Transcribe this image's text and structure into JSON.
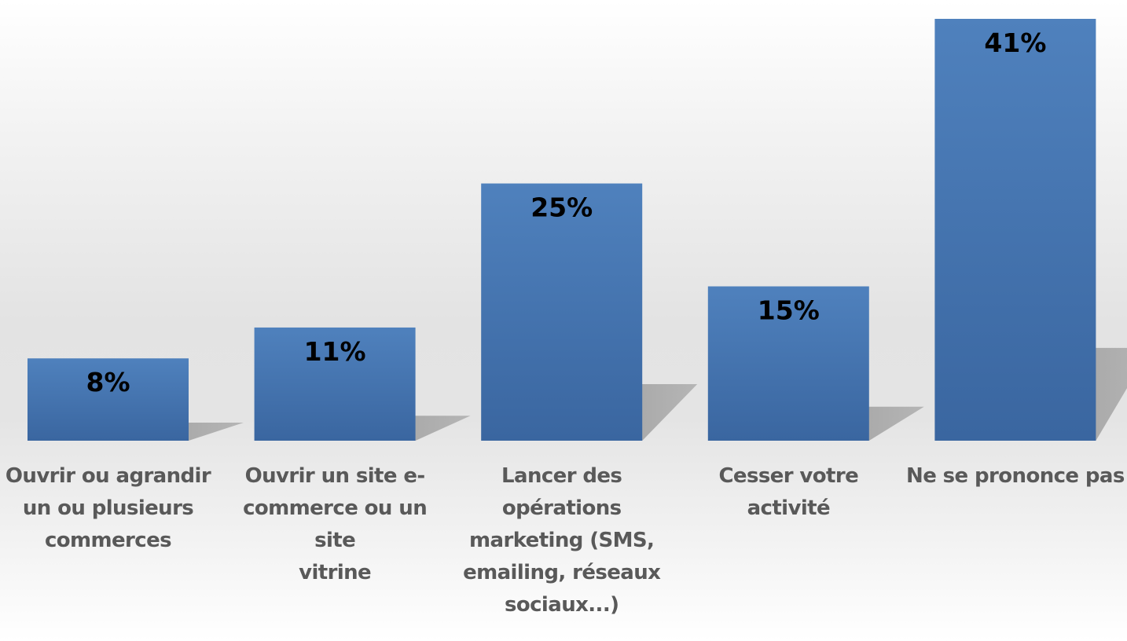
{
  "chart_data": {
    "type": "bar",
    "categories": [
      "Ouvrir ou agrandir un ou plusieurs commerces",
      "Ouvrir un site e-commerce ou un site vitrine",
      "Lancer des opérations marketing (SMS, emailing, réseaux sociaux...)",
      "Cesser votre activité",
      "Ne se prononce pas"
    ],
    "category_lines": [
      [
        "Ouvrir ou agrandir",
        "un ou plusieurs",
        "commerces"
      ],
      [
        "Ouvrir un site e-",
        "commerce ou un site",
        "vitrine"
      ],
      [
        "Lancer des",
        "opérations",
        "marketing (SMS,",
        "emailing, réseaux",
        "sociaux...)"
      ],
      [
        "Cesser votre activité"
      ],
      [
        "Ne se prononce pas"
      ]
    ],
    "values": [
      8,
      11,
      25,
      15,
      41
    ],
    "data_labels": [
      "8%",
      "11%",
      "25%",
      "15%",
      "41%"
    ],
    "unit": "%",
    "ylim": [
      0,
      41
    ],
    "grid": false,
    "legend": "none",
    "colors": {
      "bar_top": "#4f81bd",
      "bar_bottom": "#3a66a0",
      "shadow": "#a6a6a6",
      "category_text": "#595959",
      "data_label_text": "#000000"
    }
  }
}
